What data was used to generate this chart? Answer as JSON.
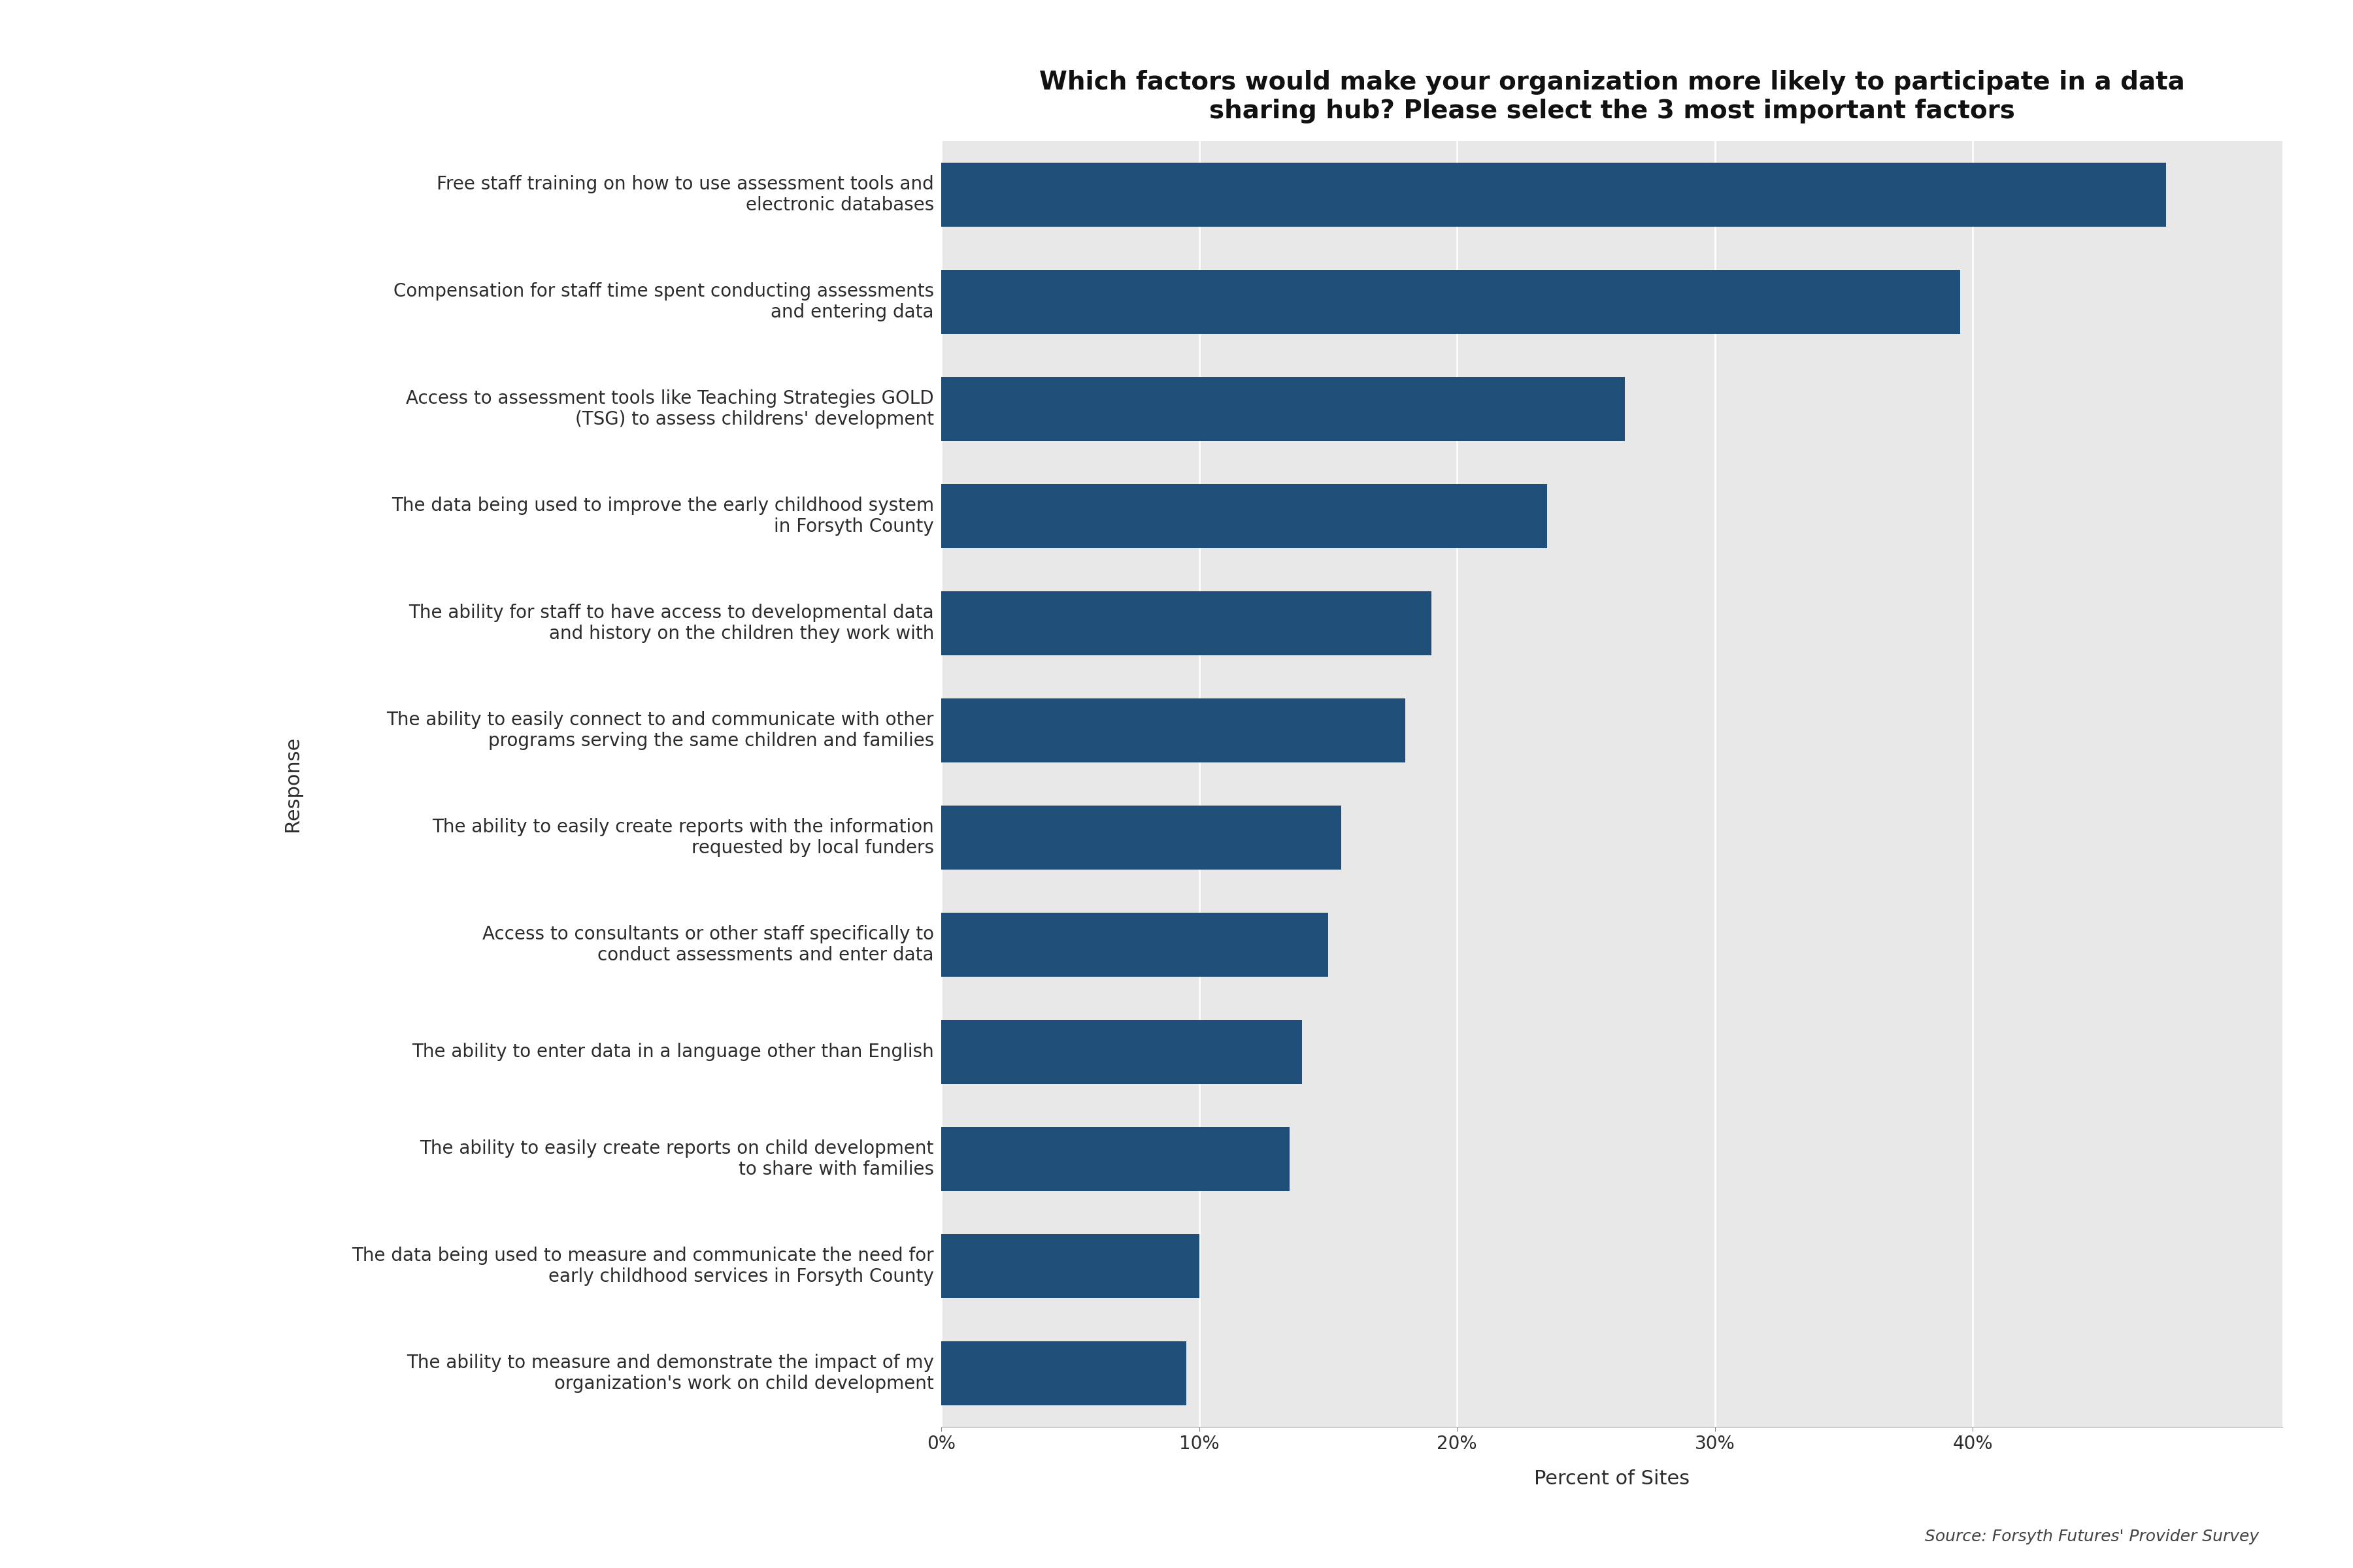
{
  "title": "Which factors would make your organization more likely to participate in a data\nsharing hub? Please select the 3 most important factors",
  "categories": [
    "Free staff training on how to use assessment tools and\nelectronic databases",
    "Compensation for staff time spent conducting assessments\nand entering data",
    "Access to assessment tools like Teaching Strategies GOLD\n(TSG) to assess childrens' development",
    "The data being used to improve the early childhood system\nin Forsyth County",
    "The ability for staff to have access to developmental data\nand history on the children they work with",
    "The ability to easily connect to and communicate with other\nprograms serving the same children and families",
    "The ability to easily create reports with the information\nrequested by local funders",
    "Access to consultants or other staff specifically to\nconduct assessments and enter data",
    "The ability to enter data in a language other than English",
    "The ability to easily create reports on child development\nto share with families",
    "The data being used to measure and communicate the need for\nearly childhood services in Forsyth County",
    "The ability to measure and demonstrate the impact of my\norganization's work on child development"
  ],
  "values": [
    0.475,
    0.395,
    0.265,
    0.235,
    0.19,
    0.18,
    0.155,
    0.15,
    0.14,
    0.135,
    0.1,
    0.095
  ],
  "bar_color": "#1F4E79",
  "xlabel": "Percent of Sites",
  "ylabel": "Response",
  "source": "Source: Forsyth Futures' Provider Survey",
  "fig_background_color": "#FFFFFF",
  "plot_background_color": "#E8E8E8",
  "xlim": [
    0,
    0.52
  ],
  "xticks": [
    0.0,
    0.1,
    0.2,
    0.3,
    0.4
  ],
  "xtick_labels": [
    "0%",
    "10%",
    "20%",
    "30%",
    "40%"
  ],
  "title_fontsize": 28,
  "tick_fontsize": 20,
  "label_fontsize": 22,
  "ylabel_fontsize": 22,
  "source_fontsize": 18
}
